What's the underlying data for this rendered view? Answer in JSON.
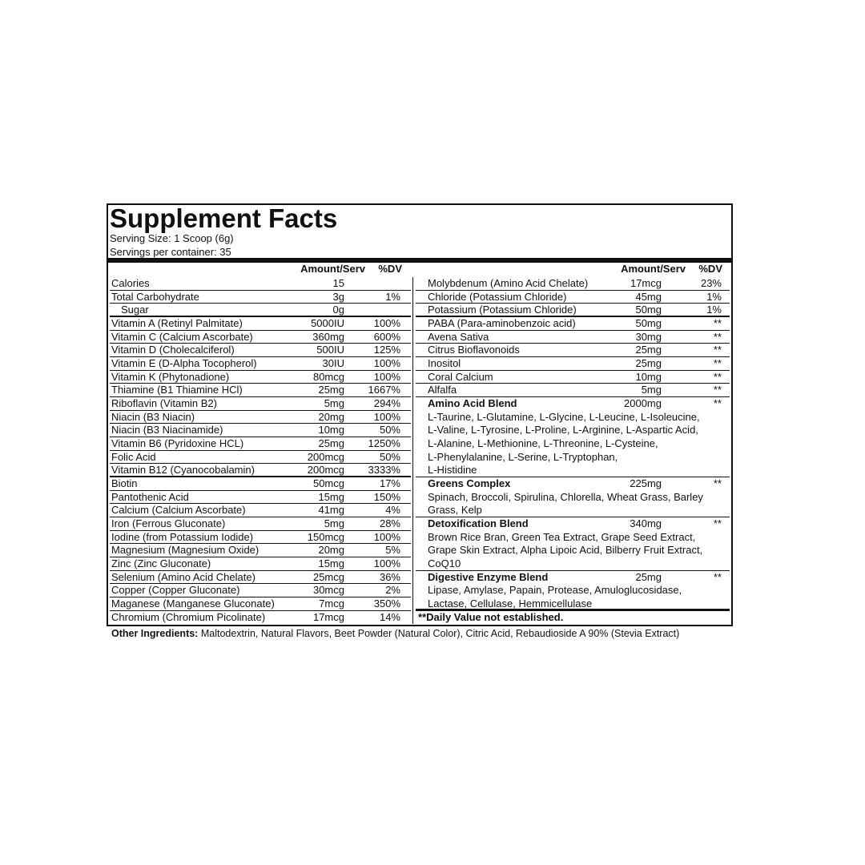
{
  "header": {
    "title": "Supplement Facts",
    "serving_size": "Serving Size: 1 Scoop (6g)",
    "servings": "Servings per container: 35"
  },
  "columns": {
    "amount": "Amount/Serv",
    "dv": "%DV"
  },
  "left_rows": [
    {
      "name": "Calories",
      "amount": "15"
    },
    {
      "name": "Total Carbohydrate",
      "amount": "3g",
      "dv": "1%"
    },
    {
      "name": "Sugar",
      "amount": "0g",
      "indent": true
    },
    {
      "name": "Vitamin A (Retinyl Palmitate)",
      "amount": "5000IU",
      "dv": "100%"
    },
    {
      "name": "Vitamin C (Calcium Ascorbate)",
      "amount": "360mg",
      "dv": "600%"
    },
    {
      "name": "Vitamin D (Cholecalciferol)",
      "amount": "500IU",
      "dv": "125%"
    },
    {
      "name": "Vitamin E (D-Alpha Tocopherol)",
      "amount": "30IU",
      "dv": "100%"
    },
    {
      "name": "Vitamin K (Phytonadione)",
      "amount": "80mcg",
      "dv": "100%"
    },
    {
      "name": "Thiamine (B1 Thiamine HCl)",
      "amount": "25mg",
      "dv": "1667%"
    },
    {
      "name": "Riboflavin (Vitamin B2)",
      "amount": "5mg",
      "dv": "294%"
    },
    {
      "name": "Niacin (B3 Niacin)",
      "amount": "20mg",
      "dv": "100%"
    },
    {
      "name": "Niacin (B3 Niacinamide)",
      "amount": "10mg",
      "dv": "50%"
    },
    {
      "name": "Vitamin B6 (Pyridoxine HCL)",
      "amount": "25mg",
      "dv": "1250%"
    },
    {
      "name": "Folic Acid",
      "amount": "200mcg",
      "dv": "50%"
    },
    {
      "name": "Vitamin B12 (Cyanocobalamin)",
      "amount": "200mcg",
      "dv": "3333%"
    },
    {
      "name": "Biotin",
      "amount": "50mcg",
      "dv": "17%"
    },
    {
      "name": "Pantothenic Acid",
      "amount": "15mg",
      "dv": "150%"
    },
    {
      "name": "Calcium (Calcium Ascorbate)",
      "amount": "41mg",
      "dv": "4%"
    },
    {
      "name": "Iron (Ferrous Gluconate)",
      "amount": "5mg",
      "dv": "28%"
    },
    {
      "name": "Iodine (from Potassium Iodide)",
      "amount": "150mcg",
      "dv": "100%"
    },
    {
      "name": "Magnesium (Magnesium Oxide)",
      "amount": "20mg",
      "dv": "5%"
    },
    {
      "name": "Zinc (Zinc Gluconate)",
      "amount": "15mg",
      "dv": "100%"
    },
    {
      "name": "Selenium (Amino Acid Chelate)",
      "amount": "25mcg",
      "dv": "36%"
    },
    {
      "name": "Copper (Copper Gluconate)",
      "amount": "30mcg",
      "dv": "2%"
    },
    {
      "name": "Maganese (Manganese Gluconate)",
      "amount": "7mcg",
      "dv": "350%"
    },
    {
      "name": "Chromium (Chromium Picolinate)",
      "amount": "17mcg",
      "dv": "14%"
    }
  ],
  "right_rows": [
    {
      "name": "Molybdenum (Amino Acid Chelate)",
      "amount": "17mcg",
      "dv": "23%"
    },
    {
      "name": "Chloride (Potassium Chloride)",
      "amount": "45mg",
      "dv": "1%"
    },
    {
      "name": "Potassium (Potassium Chloride)",
      "amount": "50mg",
      "dv": "1%"
    },
    {
      "name": "PABA (Para-aminobenzoic acid)",
      "amount": "50mg",
      "dv": "**"
    },
    {
      "name": "Avena Sativa",
      "amount": "30mg",
      "dv": "**"
    },
    {
      "name": "Citrus Bioflavonoids",
      "amount": "25mg",
      "dv": "**"
    },
    {
      "name": "Inositol",
      "amount": "25mg",
      "dv": "**"
    },
    {
      "name": "Coral Calcium",
      "amount": "10mg",
      "dv": "**"
    },
    {
      "name": "Alfalfa",
      "amount": "5mg",
      "dv": "**"
    }
  ],
  "blends": [
    {
      "name": "Amino Acid Blend",
      "amount": "2000mg",
      "dv": "**",
      "lines": [
        "L-Taurine, L-Glutamine, L-Glycine, L-Leucine, L-Isoleucine,",
        "L-Valine, L-Tyrosine, L-Proline, L-Arginine, L-Aspartic Acid,",
        "L-Alanine, L-Methionine, L-Threonine, L-Cysteine,",
        "L-Phenylalanine, L-Serine, L-Tryptophan,",
        "L-Histidine"
      ]
    },
    {
      "name": "Greens Complex",
      "amount": "225mg",
      "dv": "**",
      "lines": [
        "Spinach, Broccoli, Spirulina, Chlorella, Wheat Grass, Barley",
        "Grass, Kelp"
      ]
    },
    {
      "name": "Detoxification Blend",
      "amount": "340mg",
      "dv": "**",
      "lines": [
        "Brown Rice Bran, Green Tea Extract, Grape Seed Extract,",
        "Grape Skin Extract, Alpha Lipoic Acid, Bilberry Fruit Extract,",
        "CoQ10"
      ]
    },
    {
      "name": "Digestive Enzyme Blend",
      "amount": "25mg",
      "dv": "**",
      "lines": [
        "Lipase, Amylase, Papain, Protease, Amuloglucosidase,",
        "Lactase, Cellulase, Hemmicellulase"
      ]
    }
  ],
  "footnote": "**Daily Value not established.",
  "other_ingredients": {
    "label": "Other Ingredients:",
    "text": "Maltodextrin, Natural Flavors, Beet Powder (Natural Color), Citric Acid, Rebaudioside A 90% (Stevia Extract)"
  }
}
